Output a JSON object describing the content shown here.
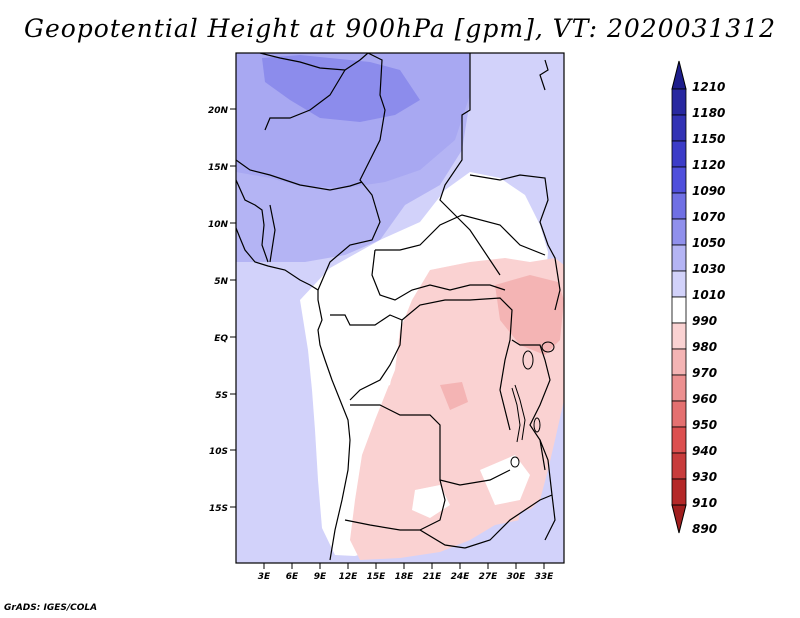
{
  "title": "Geopotential Height at 900hPa [gpm], VT: 2020031312",
  "credit": "GrADS: IGES/COLA",
  "map": {
    "lat_labels": [
      "20N",
      "15N",
      "10N",
      "5N",
      "EQ",
      "5S",
      "10S",
      "15S"
    ],
    "lon_labels": [
      "3E",
      "6E",
      "9E",
      "12E",
      "15E",
      "18E",
      "21E",
      "24E",
      "27E",
      "30E",
      "33E"
    ]
  },
  "colorbar": {
    "levels": [
      "1210",
      "1180",
      "1150",
      "1120",
      "1090",
      "1070",
      "1050",
      "1030",
      "1010",
      "990",
      "980",
      "970",
      "960",
      "950",
      "940",
      "930",
      "910",
      "890"
    ],
    "colors": [
      "#1e1e8c",
      "#2828a0",
      "#3232b4",
      "#3c3cc8",
      "#5050dc",
      "#7070e4",
      "#9090ec",
      "#b4b4f4",
      "#d2d2fa",
      "#ffffff",
      "#fad2d2",
      "#f4b4b4",
      "#ec9090",
      "#e47070",
      "#dc5050",
      "#c83c3c",
      "#b42828",
      "#a01e1e"
    ]
  }
}
